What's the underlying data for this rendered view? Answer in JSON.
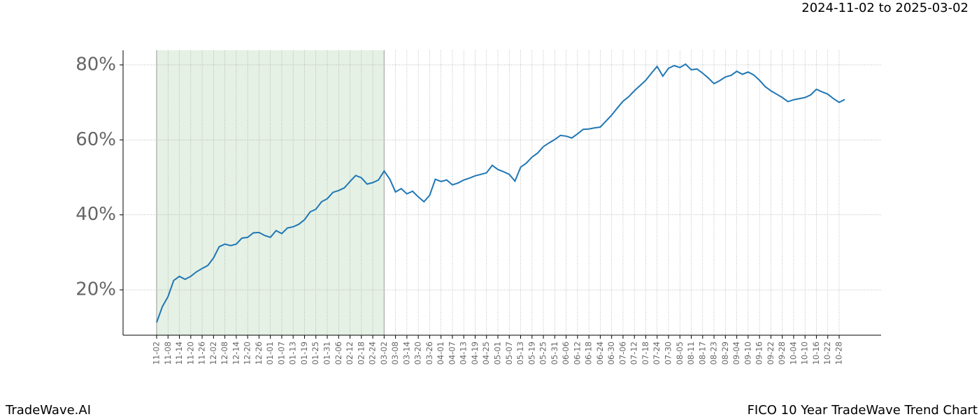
{
  "header": {
    "date_range": "2024-11-02 to 2025-03-02"
  },
  "footer": {
    "brand": "TradeWave.AI",
    "title": "FICO 10 Year TradeWave Trend Chart"
  },
  "chart_data": {
    "type": "line",
    "categories": [
      "11-02",
      null,
      "11-08",
      null,
      "11-14",
      null,
      "11-20",
      null,
      "11-26",
      null,
      "12-02",
      null,
      "12-08",
      null,
      "12-14",
      null,
      "12-20",
      null,
      "12-26",
      null,
      "01-01",
      null,
      "01-07",
      null,
      "01-13",
      null,
      "01-19",
      null,
      "01-25",
      null,
      "01-31",
      null,
      "02-06",
      null,
      "02-12",
      null,
      "02-18",
      null,
      "02-24",
      null,
      "03-02",
      null,
      "03-08",
      null,
      "03-14",
      null,
      "03-20",
      null,
      "03-26",
      null,
      "04-01",
      null,
      "04-07",
      null,
      "04-13",
      null,
      "04-19",
      null,
      "04-25",
      null,
      "05-01",
      null,
      "05-07",
      null,
      "05-13",
      null,
      "05-19",
      null,
      "05-25",
      null,
      "05-31",
      null,
      "06-06",
      null,
      "06-12",
      null,
      "06-18",
      null,
      "06-24",
      null,
      "06-30",
      null,
      "07-06",
      null,
      "07-12",
      null,
      "07-18",
      null,
      "07-24",
      null,
      "07-30",
      null,
      "08-05",
      null,
      "08-11",
      null,
      "08-17",
      null,
      "08-23",
      null,
      "08-29",
      null,
      "09-04",
      null,
      "09-10",
      null,
      "09-16",
      null,
      "09-22",
      null,
      "09-28",
      null,
      "10-04",
      null,
      "10-10",
      null,
      "10-16",
      null,
      "10-22",
      null,
      "10-28",
      null
    ],
    "series": [
      {
        "color": "#1f77b4",
        "values": [
          11.3,
          15.5,
          18.2,
          22.5,
          23.6,
          22.8,
          23.6,
          24.8,
          25.7,
          26.5,
          28.5,
          31.5,
          32.2,
          31.8,
          32.2,
          33.8,
          34,
          35.2,
          35.3,
          34.5,
          34,
          35.8,
          35,
          36.5,
          36.8,
          37.5,
          38.7,
          40.8,
          41.5,
          43.5,
          44.3,
          46,
          46.5,
          47.2,
          48.9,
          50.5,
          49.9,
          48.2,
          48.6,
          49.3,
          51.7,
          49.5,
          46.1,
          47,
          45.6,
          46.3,
          44.8,
          43.5,
          45.2,
          49.5,
          48.9,
          49.3,
          48,
          48.5,
          49.3,
          49.8,
          50.4,
          50.8,
          51.2,
          53.2,
          52.1,
          51.5,
          50.8,
          49,
          52.7,
          53.8,
          55.4,
          56.5,
          58.2,
          59.2,
          60.1,
          61.2,
          61,
          60.5,
          61.6,
          62.8,
          62.9,
          63.2,
          63.4,
          65,
          66.6,
          68.5,
          70.3,
          71.5,
          73.1,
          74.5,
          75.9,
          77.8,
          79.6,
          77,
          79.1,
          79.8,
          79.3,
          80.2,
          78.7,
          78.9,
          77.8,
          76.5,
          75,
          75.8,
          76.8,
          77.2,
          78.3,
          77.5,
          78.1,
          77.3,
          75.9,
          74.2,
          73.1,
          72.2,
          71.3,
          70.2,
          70.7,
          71,
          71.3,
          72,
          73.5,
          72.8,
          72.2,
          71,
          70,
          70.8
        ]
      }
    ],
    "ylim": [
      7.9,
      83.9
    ],
    "yticks": [
      {
        "value": 20,
        "label": "20%"
      },
      {
        "value": 40,
        "label": "40%"
      },
      {
        "value": 60,
        "label": "60%"
      },
      {
        "value": 80,
        "label": "80%"
      }
    ],
    "grid": true,
    "shade_range": [
      "11-02",
      "03-02"
    ],
    "shade_color": "#e5f1e5"
  }
}
